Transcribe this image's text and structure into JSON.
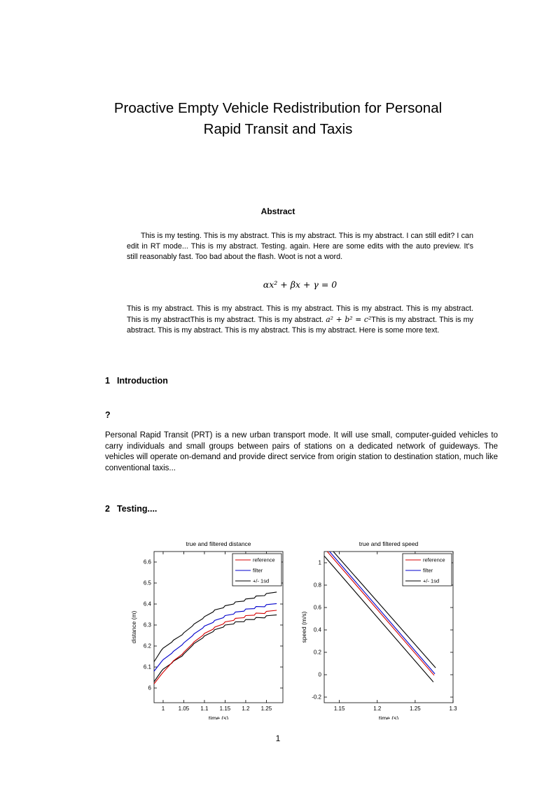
{
  "title": {
    "line1": "Proactive Empty Vehicle Redistribution for Personal",
    "line2": "Rapid Transit and Taxis"
  },
  "abstract": {
    "heading": "Abstract",
    "para1": "This is my testing. This is my abstract. This is my abstract. This is my abstract. I can still edit? I can edit in RT mode... This is my abstract. Testing. again. Here are some edits with the auto preview. It's still reasonably fast. Too bad about the flash. Woot is not a word.",
    "formula": "αx² + βx + γ = 0",
    "para2_before": "This is my abstract. This is my abstract. This is my abstract. This is my abstract. This is my abstract. This is my abstractThis is my abstract. This is my abstract. ",
    "para2_math": "a² + b² = c²",
    "para2_after": "This is my abstract. This is my abstract. This is my abstract. This is my abstract. This is my abstract. Here is some more text."
  },
  "sections": [
    {
      "number": "1",
      "title": "Introduction"
    },
    {
      "number": "2",
      "title": "Testing...."
    }
  ],
  "question_mark": "?",
  "intro_para": "Personal Rapid Transit (PRT) is a new urban transport mode. It will use small, computer-guided vehicles to carry individuals and small groups between pairs of stations on a dedicated network of guideways. The vehicles will operate on-demand and provide direct service from origin station to destination station, much like conventional taxis...",
  "page": {
    "number": "1"
  },
  "chart_data": [
    {
      "type": "line",
      "title": "true and filtered distance",
      "xlabel": "time (s)",
      "ylabel": "distance (m)",
      "xlim": [
        0.978,
        1.29
      ],
      "ylim": [
        5.93,
        6.65
      ],
      "grid": false,
      "xticks": [
        [
          1,
          "1"
        ],
        [
          1.05,
          "1.05"
        ],
        [
          1.1,
          "1.1"
        ],
        [
          1.15,
          "1.15"
        ],
        [
          1.2,
          "1.2"
        ],
        [
          1.25,
          "1.25"
        ]
      ],
      "yticks": [
        [
          6,
          "6"
        ],
        [
          6.1,
          "6.1"
        ],
        [
          6.2,
          "6.2"
        ],
        [
          6.3,
          "6.3"
        ],
        [
          6.4,
          "6.4"
        ],
        [
          6.5,
          "6.5"
        ],
        [
          6.6,
          "6.6"
        ]
      ],
      "legend": {
        "position": "top-right",
        "entries": [
          {
            "label": "reference",
            "color": "#d40000"
          },
          {
            "label": "filter",
            "color": "#0000cc"
          },
          {
            "label": "+/- 1sd",
            "color": "#000000"
          }
        ]
      },
      "series": [
        {
          "name": "plus-1sd",
          "color": "#000000",
          "jagged": true,
          "points": [
            [
              0.978,
              6.125
            ],
            [
              1.0,
              6.19
            ],
            [
              1.025,
              6.228
            ],
            [
              1.05,
              6.263
            ],
            [
              1.075,
              6.305
            ],
            [
              1.1,
              6.34
            ],
            [
              1.125,
              6.372
            ],
            [
              1.15,
              6.392
            ],
            [
              1.175,
              6.41
            ],
            [
              1.2,
              6.424
            ],
            [
              1.225,
              6.438
            ],
            [
              1.25,
              6.45
            ],
            [
              1.275,
              6.457
            ]
          ]
        },
        {
          "name": "minus-1sd",
          "color": "#000000",
          "jagged": true,
          "points": [
            [
              0.978,
              6.03
            ],
            [
              1.0,
              6.09
            ],
            [
              1.025,
              6.128
            ],
            [
              1.05,
              6.162
            ],
            [
              1.075,
              6.212
            ],
            [
              1.1,
              6.248
            ],
            [
              1.125,
              6.278
            ],
            [
              1.15,
              6.3
            ],
            [
              1.175,
              6.315
            ],
            [
              1.2,
              6.326
            ],
            [
              1.225,
              6.336
            ],
            [
              1.25,
              6.344
            ],
            [
              1.275,
              6.348
            ]
          ]
        },
        {
          "name": "reference",
          "color": "#d40000",
          "jagged": true,
          "points": [
            [
              0.978,
              6.02
            ],
            [
              1.0,
              6.075
            ],
            [
              1.025,
              6.13
            ],
            [
              1.05,
              6.17
            ],
            [
              1.075,
              6.22
            ],
            [
              1.1,
              6.26
            ],
            [
              1.125,
              6.29
            ],
            [
              1.15,
              6.315
            ],
            [
              1.175,
              6.332
            ],
            [
              1.2,
              6.345
            ],
            [
              1.225,
              6.357
            ],
            [
              1.25,
              6.365
            ],
            [
              1.275,
              6.37
            ]
          ]
        },
        {
          "name": "filter",
          "color": "#0000cc",
          "jagged": true,
          "points": [
            [
              0.978,
              6.08
            ],
            [
              1.0,
              6.135
            ],
            [
              1.025,
              6.175
            ],
            [
              1.05,
              6.215
            ],
            [
              1.075,
              6.258
            ],
            [
              1.1,
              6.295
            ],
            [
              1.125,
              6.322
            ],
            [
              1.15,
              6.345
            ],
            [
              1.175,
              6.362
            ],
            [
              1.2,
              6.376
            ],
            [
              1.225,
              6.388
            ],
            [
              1.25,
              6.397
            ],
            [
              1.275,
              6.402
            ]
          ]
        }
      ]
    },
    {
      "type": "line",
      "title": "true and filtered speed",
      "xlabel": "time (s)",
      "ylabel": "speed (m/s)",
      "xlim": [
        1.13,
        1.3
      ],
      "ylim": [
        -0.25,
        1.1
      ],
      "grid": false,
      "xticks": [
        [
          1.15,
          "1.15"
        ],
        [
          1.2,
          "1.2"
        ],
        [
          1.25,
          "1.25"
        ],
        [
          1.3,
          "1.3"
        ]
      ],
      "yticks": [
        [
          -0.2,
          "-0.2"
        ],
        [
          0,
          "0"
        ],
        [
          0.2,
          "0.2"
        ],
        [
          0.4,
          "0.4"
        ],
        [
          0.6,
          "0.6"
        ],
        [
          0.8,
          "0.8"
        ],
        [
          1,
          "1"
        ]
      ],
      "legend": {
        "position": "top-right",
        "entries": [
          {
            "label": "reference",
            "color": "#d40000"
          },
          {
            "label": "filter",
            "color": "#0000cc"
          },
          {
            "label": "+/- 1sd",
            "color": "#000000"
          }
        ]
      },
      "series": [
        {
          "name": "plus-1sd",
          "color": "#000000",
          "jagged": false,
          "points": [
            [
              1.142,
              1.1
            ],
            [
              1.277,
              0.062
            ]
          ]
        },
        {
          "name": "minus-1sd",
          "color": "#000000",
          "jagged": false,
          "points": [
            [
              1.13,
              1.06
            ],
            [
              1.274,
              -0.065
            ]
          ]
        },
        {
          "name": "reference",
          "color": "#d40000",
          "jagged": false,
          "points": [
            [
              1.134,
              1.1
            ],
            [
              1.275,
              -0.005
            ]
          ]
        },
        {
          "name": "filter",
          "color": "#0000cc",
          "jagged": false,
          "points": [
            [
              1.137,
              1.1
            ],
            [
              1.276,
              0.008
            ]
          ]
        }
      ]
    }
  ]
}
